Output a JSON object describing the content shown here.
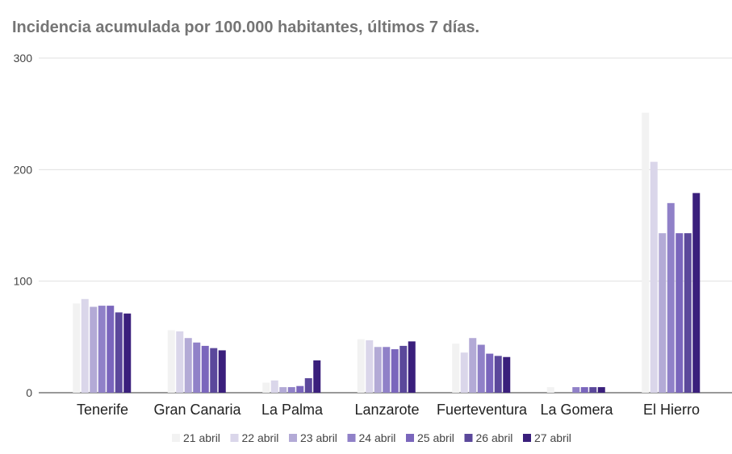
{
  "chart_data": {
    "type": "bar",
    "title": "Incidencia acumulada por 100.000 habitantes, últimos 7 días.",
    "xlabel": "",
    "ylabel": "",
    "ylim": [
      0,
      300
    ],
    "yticks": [
      0,
      100,
      200,
      300
    ],
    "grid": true,
    "legend_position": "bottom",
    "categories": [
      "Tenerife",
      "Gran Canaria",
      "La Palma",
      "Lanzarote",
      "Fuerteventura",
      "La Gomera",
      "El Hierro"
    ],
    "series": [
      {
        "name": "21 abril",
        "color": "#f2f2f2",
        "values": [
          80,
          56,
          9,
          48,
          44,
          5,
          251
        ]
      },
      {
        "name": "22 abril",
        "color": "#dad6ea",
        "values": [
          84,
          55,
          11,
          47,
          36,
          0,
          207
        ]
      },
      {
        "name": "23 abril",
        "color": "#b3aad6",
        "values": [
          77,
          49,
          5,
          41,
          49,
          0,
          143
        ]
      },
      {
        "name": "24 abril",
        "color": "#9081c8",
        "values": [
          78,
          45,
          5,
          41,
          43,
          5,
          170
        ]
      },
      {
        "name": "25 abril",
        "color": "#7a66bc",
        "values": [
          78,
          42,
          6,
          39,
          35,
          5,
          143
        ]
      },
      {
        "name": "26 abril",
        "color": "#5b489b",
        "values": [
          72,
          40,
          13,
          42,
          33,
          5,
          143
        ]
      },
      {
        "name": "27 abril",
        "color": "#3a1f7c",
        "values": [
          71,
          38,
          29,
          46,
          32,
          5,
          179
        ]
      }
    ]
  }
}
